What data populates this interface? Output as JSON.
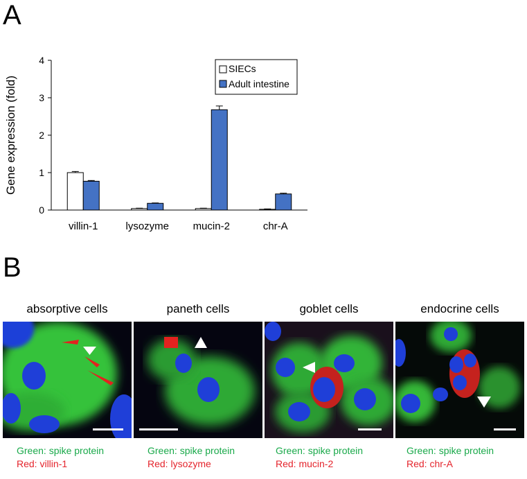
{
  "panels": {
    "a": "A",
    "b": "B"
  },
  "chart_data": {
    "type": "bar",
    "categories": [
      "villin-1",
      "lysozyme",
      "mucin-2",
      "chr-A"
    ],
    "series": [
      {
        "name": "SIECs",
        "values": [
          1.0,
          0.04,
          0.04,
          0.02
        ],
        "errors": [
          0.03,
          0.01,
          0.01,
          0.01
        ],
        "color": "#ffffff"
      },
      {
        "name": "Adult intestine",
        "values": [
          0.77,
          0.18,
          2.68,
          0.43
        ],
        "errors": [
          0.02,
          0.01,
          0.1,
          0.02
        ],
        "color": "#4472c4"
      }
    ],
    "ylabel": "Gene expression (fold)",
    "ylim": [
      0,
      4
    ],
    "yticks": [
      "0",
      "1",
      "2",
      "3",
      "4"
    ],
    "legend_position": "top-right",
    "grid": false
  },
  "micrographs": [
    {
      "title": "absorptive cells",
      "green_caption": "Green: spike protein",
      "red_caption": "Red: villin-1"
    },
    {
      "title": "paneth cells",
      "green_caption": "Green: spike protein",
      "red_caption": "Red: lysozyme"
    },
    {
      "title": "goblet cells",
      "green_caption": "Green: spike protein",
      "red_caption": "Red: mucin-2"
    },
    {
      "title": "endocrine cells",
      "green_caption": "Green: spike protein",
      "red_caption": "Red: chr-A"
    }
  ],
  "colors": {
    "nuclei": "#1f3fd8",
    "spike": "#3fc93a",
    "marker": "#e3221f",
    "caption_green": "#19a94a",
    "caption_red": "#e4232b"
  }
}
